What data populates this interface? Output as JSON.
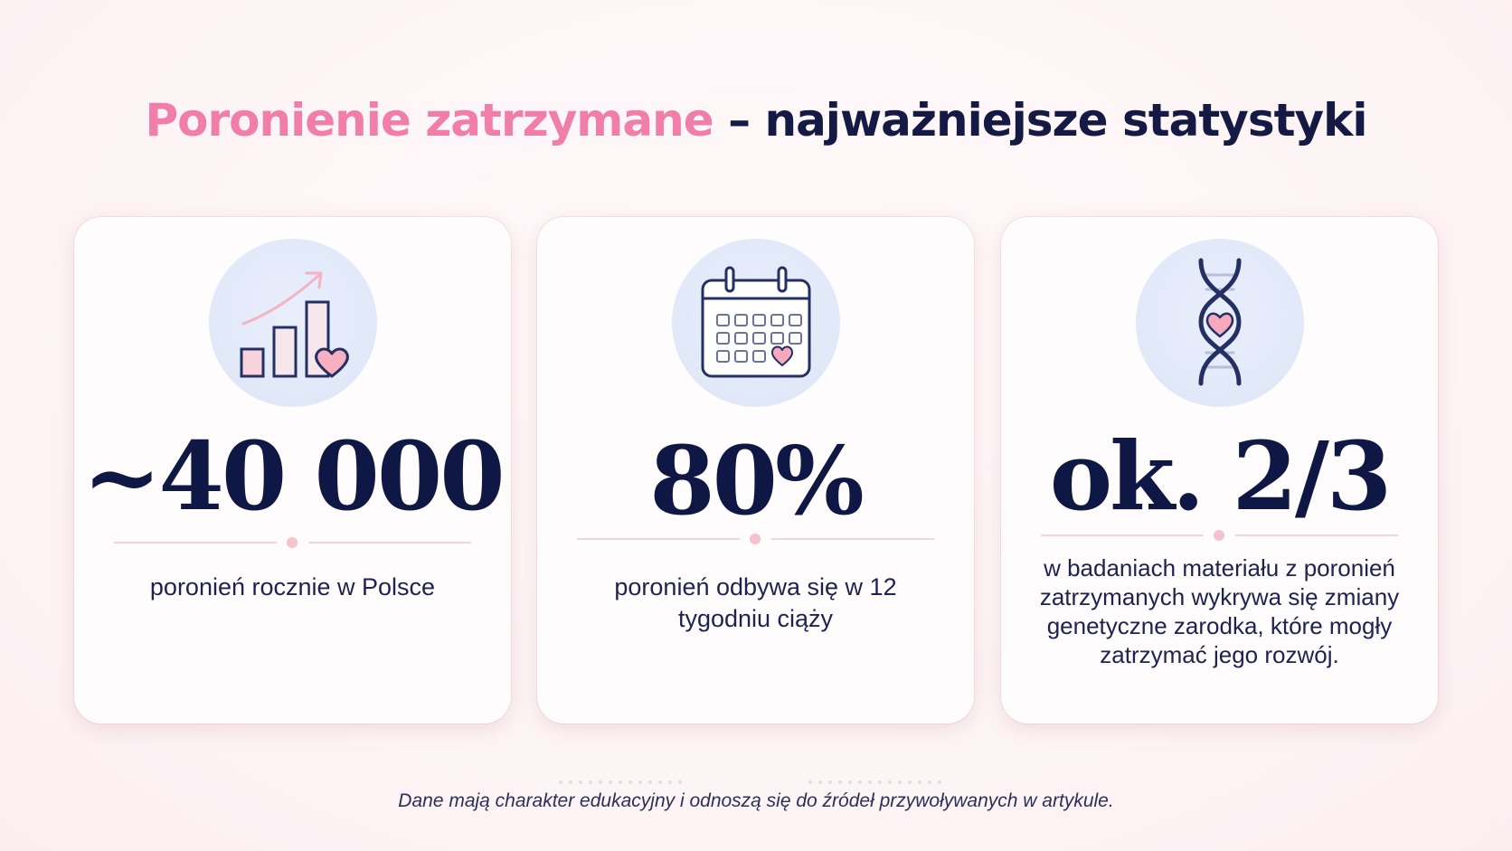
{
  "title": {
    "highlight": "Poronienie zatrzymane",
    "rest": " – najważniejsze statystyki"
  },
  "cards": [
    {
      "icon": "bar-chart-heart-icon",
      "value": "~40 000",
      "description": "poronień rocznie w Polsce"
    },
    {
      "icon": "calendar-heart-icon",
      "value": "80%",
      "description": "poronień odbywa się w 12 tygodniu ciąży"
    },
    {
      "icon": "dna-heart-icon",
      "value": "ok. 2/3",
      "description": "w badaniach materiału z poronień zatrzymanych wykrywa się zmiany genetyczne zarodka, które mogły zatrzymać jego rozwój."
    }
  ],
  "footnote": "Dane mają charakter edukacyjny i odnoszą się do źródeł przywoływanych w artykule.",
  "colors": {
    "accent_pink": "#f07ea8",
    "navy": "#141a44",
    "icon_bg": "#dde6f7",
    "heart": "#f4a7b9"
  }
}
